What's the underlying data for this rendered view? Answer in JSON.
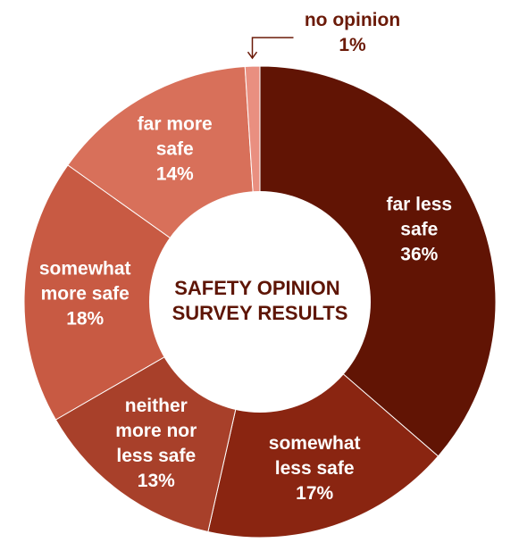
{
  "chart_data": {
    "type": "pie",
    "variant": "donut",
    "title_lines": [
      "SAFETY OPINION",
      "SURVEY RESULTS"
    ],
    "slices": [
      {
        "label_lines": [
          "far less",
          "safe"
        ],
        "value": 36,
        "value_label": "36%",
        "color": "#611404"
      },
      {
        "label_lines": [
          "somewhat",
          "less safe"
        ],
        "value": 17,
        "value_label": "17%",
        "color": "#8a2511"
      },
      {
        "label_lines": [
          "neither",
          "more nor",
          "less safe"
        ],
        "value": 13,
        "value_label": "13%",
        "color": "#a8402a"
      },
      {
        "label_lines": [
          "somewhat",
          "more safe"
        ],
        "value": 18,
        "value_label": "18%",
        "color": "#c85a43"
      },
      {
        "label_lines": [
          "far more",
          "safe"
        ],
        "value": 14,
        "value_label": "14%",
        "color": "#d8705a"
      },
      {
        "label_lines": [
          "no opinion"
        ],
        "value": 1,
        "value_label": "1%",
        "color": "#e98f80",
        "callout": true
      }
    ],
    "start": "top",
    "direction": "clockwise",
    "legend": "none"
  }
}
